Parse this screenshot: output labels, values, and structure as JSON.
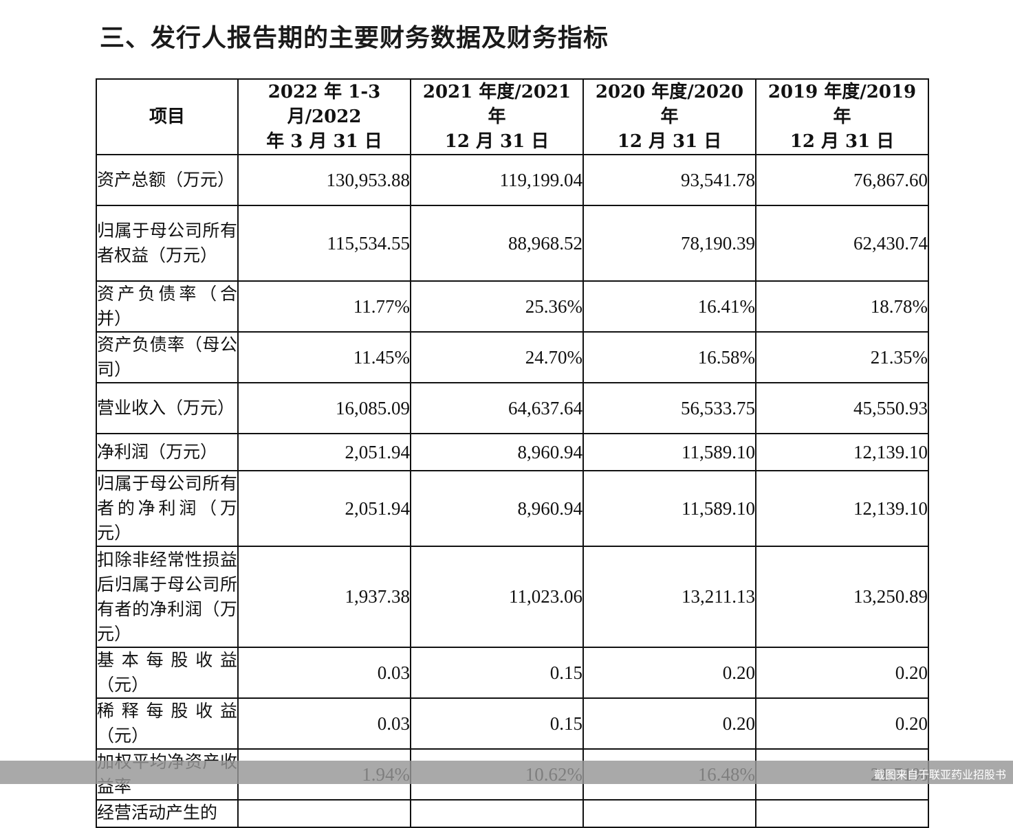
{
  "heading": "三、发行人报告期的主要财务数据及财务指标",
  "table": {
    "headers": [
      "项目",
      "2022 年 1-3 月/2022\n年 3 月 31 日",
      "2021 年度/2021 年\n12 月 31 日",
      "2020 年度/2020 年\n12 月 31 日",
      "2019 年度/2019 年\n12 月 31 日"
    ],
    "rows": [
      {
        "label": "资产总额（万元）",
        "values": [
          "130,953.88",
          "119,199.04",
          "93,541.78",
          "76,867.60"
        ]
      },
      {
        "label": "归属于母公司所有者权益（万元）",
        "values": [
          "115,534.55",
          "88,968.52",
          "78,190.39",
          "62,430.74"
        ]
      },
      {
        "label": "资产负债率（合并）",
        "values": [
          "11.77%",
          "25.36%",
          "16.41%",
          "18.78%"
        ]
      },
      {
        "label": "资产负债率（母公司）",
        "values": [
          "11.45%",
          "24.70%",
          "16.58%",
          "21.35%"
        ]
      },
      {
        "label": "营业收入（万元）",
        "values": [
          "16,085.09",
          "64,637.64",
          "56,533.75",
          "45,550.93"
        ]
      },
      {
        "label": "净利润（万元）",
        "values": [
          "2,051.94",
          "8,960.94",
          "11,589.10",
          "12,139.10"
        ]
      },
      {
        "label": "归属于母公司所有者的净利润（万元）",
        "values": [
          "2,051.94",
          "8,960.94",
          "11,589.10",
          "12,139.10"
        ]
      },
      {
        "label": "扣除非经常性损益后归属于母公司所有者的净利润（万元）",
        "values": [
          "1,937.38",
          "11,023.06",
          "13,211.13",
          "13,250.89"
        ]
      },
      {
        "label": "基本每股收益（元）",
        "values": [
          "0.03",
          "0.15",
          "0.20",
          "0.20"
        ]
      },
      {
        "label": "稀释每股收益（元）",
        "values": [
          "0.03",
          "0.15",
          "0.20",
          "0.20"
        ]
      },
      {
        "label": "加权平均净资产收益率",
        "values": [
          "1.94%",
          "10.62%",
          "16.48%",
          "21.71%"
        ]
      },
      {
        "label": "经营活动产生的",
        "values": [
          "",
          "",
          "",
          ""
        ]
      }
    ]
  },
  "footer": {
    "caption": "截图来自于联亚药业招股书"
  }
}
